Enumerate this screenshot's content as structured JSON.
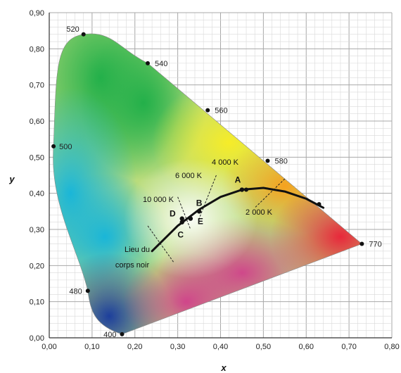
{
  "chart_data": {
    "type": "scatter",
    "title": "",
    "xlabel": "x",
    "ylabel": "y",
    "xlim": [
      0,
      0.8
    ],
    "ylim": [
      0,
      0.9
    ],
    "grid": true,
    "x_ticks": [
      "0,00",
      "0,10",
      "0,20",
      "0,30",
      "0,40",
      "0,50",
      "0,60",
      "0,70",
      "0,80"
    ],
    "y_ticks": [
      "0,00",
      "0,10",
      "0,20",
      "0,30",
      "0,40",
      "0,50",
      "0,60",
      "0,70",
      "0,80",
      "0,90"
    ],
    "spectral_locus": [
      {
        "label": "400",
        "x": 0.17,
        "y": 0.01
      },
      {
        "label": "480",
        "x": 0.09,
        "y": 0.13
      },
      {
        "label": "500",
        "x": 0.01,
        "y": 0.53
      },
      {
        "label": "520",
        "x": 0.08,
        "y": 0.84
      },
      {
        "label": "540",
        "x": 0.23,
        "y": 0.76
      },
      {
        "label": "560",
        "x": 0.37,
        "y": 0.63
      },
      {
        "label": "580",
        "x": 0.51,
        "y": 0.49
      },
      {
        "label": "770",
        "x": 0.73,
        "y": 0.26
      }
    ],
    "illuminants": [
      {
        "label": "A",
        "x": 0.45,
        "y": 0.41
      },
      {
        "label": "B",
        "x": 0.35,
        "y": 0.35
      },
      {
        "label": "C",
        "x": 0.31,
        "y": 0.32
      },
      {
        "label": "D",
        "x": 0.31,
        "y": 0.33
      },
      {
        "label": "E",
        "x": 0.33,
        "y": 0.33
      }
    ],
    "planckian_locus": {
      "label_line1": "Lieu du",
      "label_line2": "corps noir",
      "points": [
        [
          0.24,
          0.24
        ],
        [
          0.3,
          0.31
        ],
        [
          0.35,
          0.355
        ],
        [
          0.4,
          0.39
        ],
        [
          0.45,
          0.41
        ],
        [
          0.5,
          0.415
        ],
        [
          0.55,
          0.405
        ],
        [
          0.6,
          0.385
        ],
        [
          0.64,
          0.36
        ]
      ]
    },
    "isotherms": [
      {
        "label": "10 000 K",
        "x1": 0.23,
        "y1": 0.31,
        "x2": 0.29,
        "y2": 0.21
      },
      {
        "label": "6 000 K",
        "x1": 0.3,
        "y1": 0.39,
        "x2": 0.33,
        "y2": 0.3
      },
      {
        "label": "4 000 K",
        "x1": 0.39,
        "y1": 0.45,
        "x2": 0.35,
        "y2": 0.33
      },
      {
        "label": "2 000 K",
        "x1": 0.55,
        "y1": 0.44,
        "x2": 0.48,
        "y2": 0.36
      }
    ],
    "extra_points": [
      {
        "x": 0.46,
        "y": 0.41
      },
      {
        "x": 0.63,
        "y": 0.37
      }
    ]
  }
}
